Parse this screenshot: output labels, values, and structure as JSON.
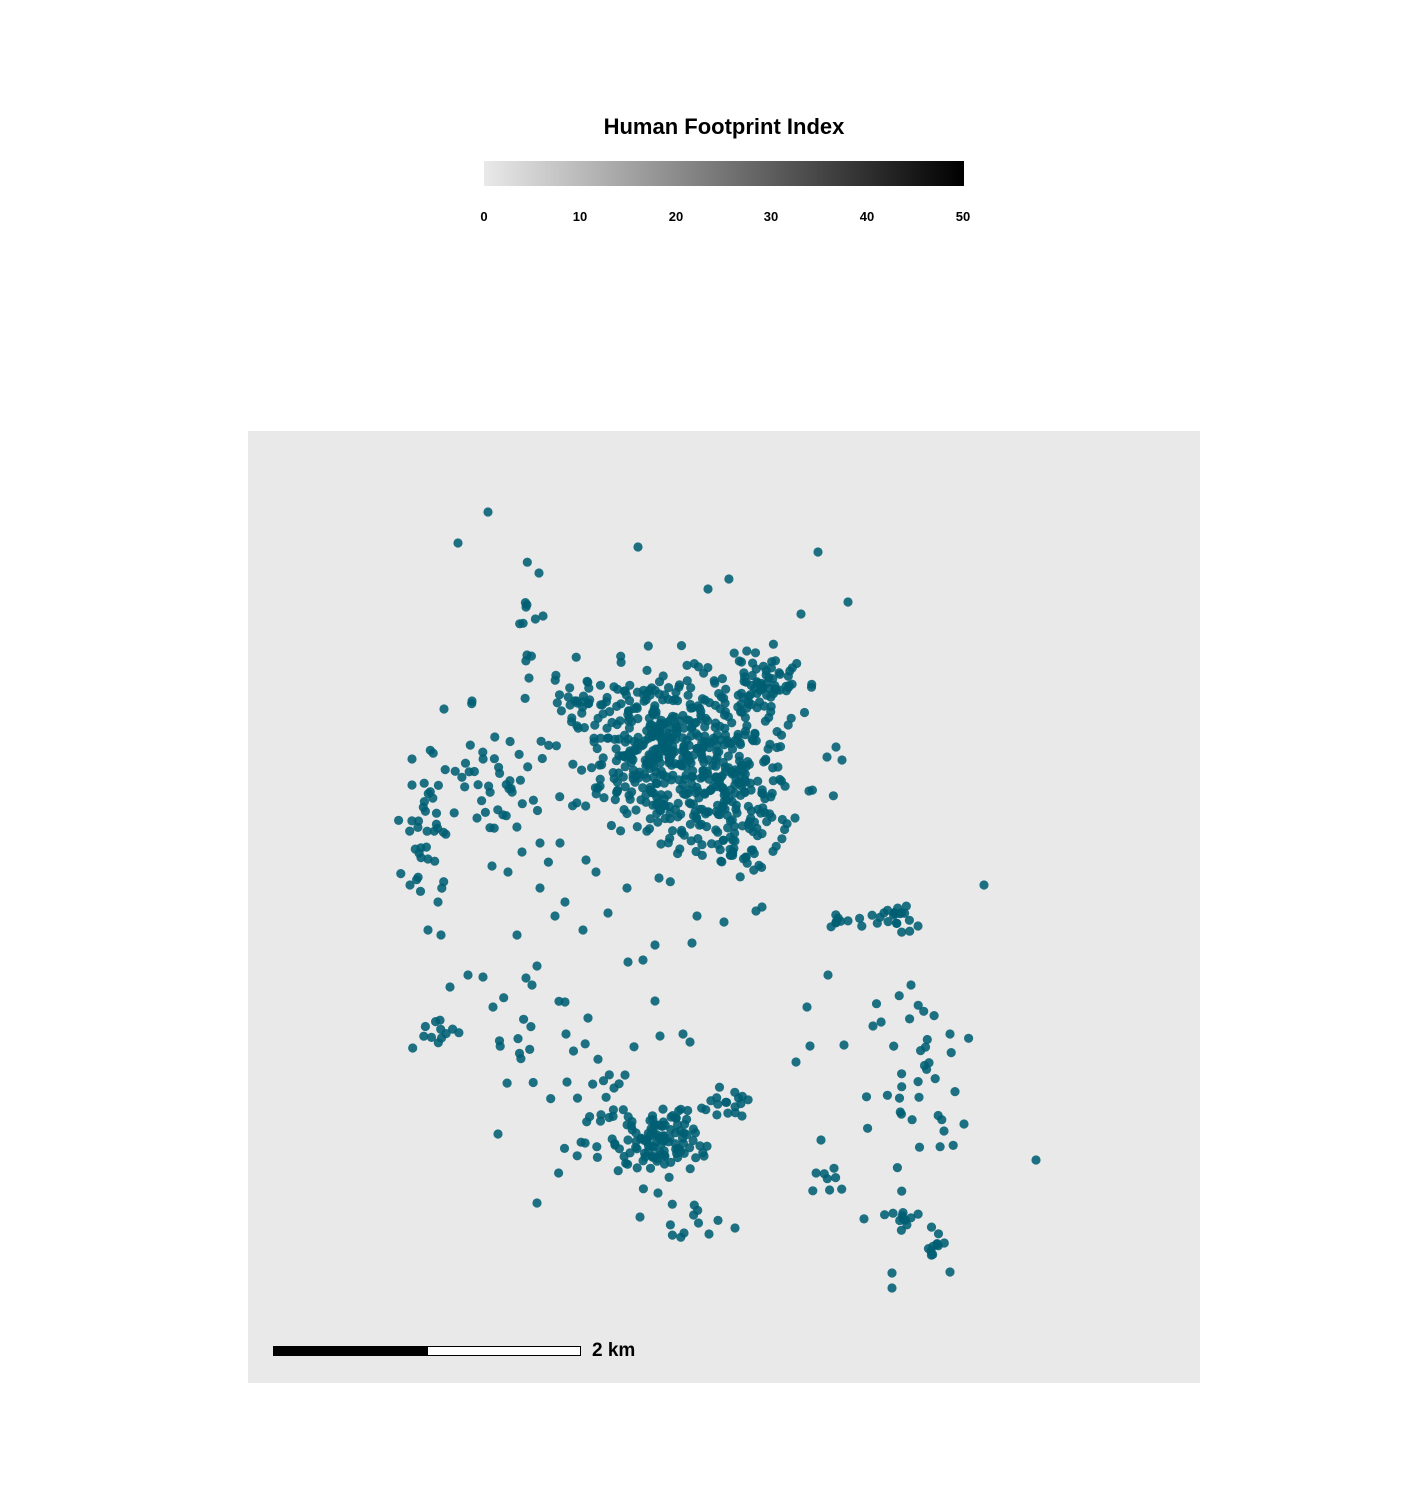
{
  "legend": {
    "title": "Human Footprint Index",
    "ticks": [
      "0",
      "10",
      "20",
      "30",
      "40",
      "50"
    ],
    "color_low": "#e9e9e9",
    "color_high": "#000000"
  },
  "map": {
    "background_color": "#e9e9e9",
    "point_color": "#005f73",
    "point_icon": "circle-marker"
  },
  "scale_bar": {
    "label": "2 km"
  }
}
